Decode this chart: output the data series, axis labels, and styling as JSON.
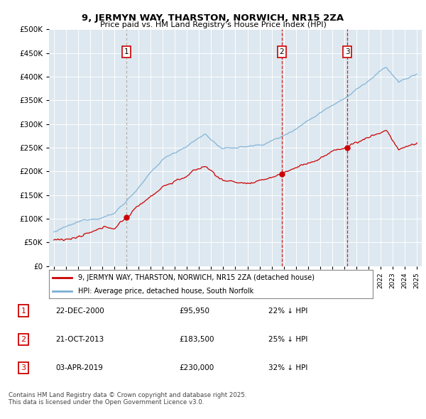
{
  "title": "9, JERMYN WAY, THARSTON, NORWICH, NR15 2ZA",
  "subtitle": "Price paid vs. HM Land Registry's House Price Index (HPI)",
  "bg_color": "#ffffff",
  "plot_bg_color": "#dde8f0",
  "hpi_color": "#7bafd4",
  "price_color": "#cc0000",
  "vline1_color": "#aaaaaa",
  "vline23_color": "#cc0000",
  "transactions": [
    {
      "label": "1",
      "date_num": 2001.0,
      "price": 95950,
      "date_str": "22-DEC-2000",
      "pct": "22% ↓ HPI"
    },
    {
      "label": "2",
      "date_num": 2013.83,
      "price": 183500,
      "date_str": "21-OCT-2013",
      "pct": "25% ↓ HPI"
    },
    {
      "label": "3",
      "date_num": 2019.25,
      "price": 230000,
      "date_str": "03-APR-2019",
      "pct": "32% ↓ HPI"
    }
  ],
  "legend_entry1": "9, JERMYN WAY, THARSTON, NORWICH, NR15 2ZA (detached house)",
  "legend_entry2": "HPI: Average price, detached house, South Norfolk",
  "footer": "Contains HM Land Registry data © Crown copyright and database right 2025.\nThis data is licensed under the Open Government Licence v3.0.",
  "xmin": 1994.6,
  "xmax": 2025.4,
  "ymin": 0,
  "ymax": 500000
}
